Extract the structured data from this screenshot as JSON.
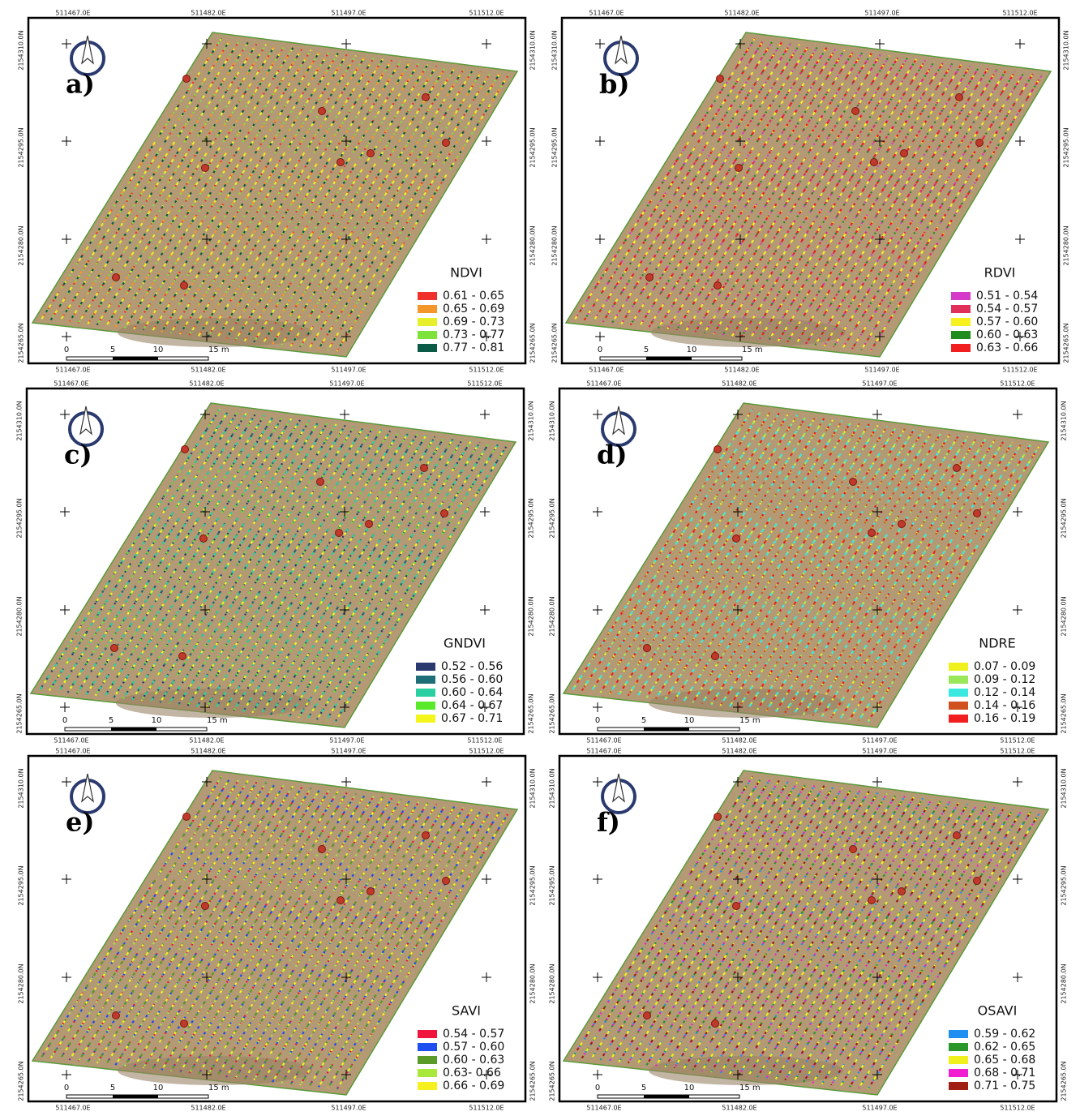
{
  "eastings": [
    "511467.0E",
    "511482.0E",
    "511497.0E",
    "511512.0E"
  ],
  "northings": [
    "2154310.0N",
    "2154295.0N",
    "2154280.0N",
    "2154265.0N"
  ],
  "scale_labels": [
    "0",
    "5",
    "10",
    "15 m"
  ],
  "panels": [
    {
      "label": "a)",
      "legend_title": "NDVI",
      "legend": [
        {
          "label": "0.61 - 0.65",
          "color": "#f0312a"
        },
        {
          "label": "0.65 - 0.69",
          "color": "#f5962a"
        },
        {
          "label": "0.69 - 0.73",
          "color": "#e6ef2a"
        },
        {
          "label": "0.73 - 0.77",
          "color": "#7de33a"
        },
        {
          "label": "0.77 - 0.81",
          "color": "#0a5a46"
        }
      ]
    },
    {
      "label": "b)",
      "legend_title": "RDVI",
      "legend": [
        {
          "label": "0.51 - 0.54",
          "color": "#d63ac8"
        },
        {
          "label": "0.54 - 0.57",
          "color": "#e0305a"
        },
        {
          "label": "0.57 - 0.60",
          "color": "#f5f01e"
        },
        {
          "label": "0.60 - 0.63",
          "color": "#1e8c1e"
        },
        {
          "label": "0.63 - 0.66",
          "color": "#f01e1e"
        }
      ]
    },
    {
      "label": "c)",
      "legend_title": "GNDVI",
      "legend": [
        {
          "label": "0.52 - 0.56",
          "color": "#2a3a6e"
        },
        {
          "label": "0.56 - 0.60",
          "color": "#1e6e78"
        },
        {
          "label": "0.60 - 0.64",
          "color": "#2ad0a0"
        },
        {
          "label": "0.64 - 0.67",
          "color": "#5aea2a"
        },
        {
          "label": "0.67 - 0.71",
          "color": "#f5f51e"
        }
      ]
    },
    {
      "label": "d)",
      "legend_title": "NDRE",
      "legend": [
        {
          "label": "0.07 - 0.09",
          "color": "#f0f01e"
        },
        {
          "label": "0.09 - 0.12",
          "color": "#9ae85a"
        },
        {
          "label": "0.12 - 0.14",
          "color": "#3ae8e0"
        },
        {
          "label": "0.14 - 0.16",
          "color": "#d0501e"
        },
        {
          "label": "0.16 - 0.19",
          "color": "#f01e1e"
        }
      ]
    },
    {
      "label": "e)",
      "legend_title": "SAVI",
      "legend": [
        {
          "label": "0.54 - 0.57",
          "color": "#f0143c"
        },
        {
          "label": "0.57 - 0.60",
          "color": "#1e4ef0"
        },
        {
          "label": "0.60 - 0.63",
          "color": "#5a9a28"
        },
        {
          "label": "0.63- 0.66",
          "color": "#a8e83c"
        },
        {
          "label": "0.66 - 0.69",
          "color": "#f5f01e"
        }
      ]
    },
    {
      "label": "f)",
      "legend_title": "OSAVI",
      "legend": [
        {
          "label": "0.59 - 0.62",
          "color": "#1e8ef0"
        },
        {
          "label": "0.62 - 0.65",
          "color": "#289628"
        },
        {
          "label": "0.65 - 0.68",
          "color": "#f0f01e"
        },
        {
          "label": "0.68 - 0.71",
          "color": "#f01ed0"
        },
        {
          "label": "0.71 - 0.75",
          "color": "#a01e14"
        }
      ]
    }
  ]
}
